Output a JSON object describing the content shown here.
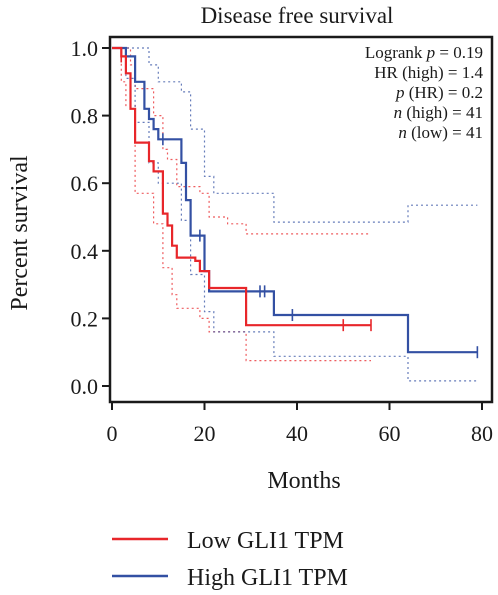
{
  "chart_data": {
    "type": "line",
    "title": "Disease free survival",
    "xlabel": "Months",
    "ylabel": "Percent survival",
    "xlim": [
      0,
      80
    ],
    "ylim": [
      0,
      1.0
    ],
    "x_ticks": [
      0,
      20,
      40,
      60,
      80
    ],
    "y_ticks": [
      0.0,
      0.2,
      0.4,
      0.6,
      0.8,
      1.0
    ],
    "x_tick_labels": [
      "0",
      "20",
      "40",
      "60",
      "80"
    ],
    "y_tick_labels": [
      "0.0",
      "0.2",
      "0.4",
      "0.6",
      "0.8",
      "1.0"
    ],
    "grid": false,
    "legend_position": "bottom",
    "annotations": [
      {
        "label": "Logrank",
        "italic": "p",
        "value": " = 0.19"
      },
      {
        "label": "HR (high) = 1.4",
        "italic": "",
        "value": ""
      },
      {
        "label": "",
        "italic": "p",
        "value": " (HR) = 0.2"
      },
      {
        "label": "",
        "italic": "n",
        "value": " (high) = 41"
      },
      {
        "label": "",
        "italic": "n",
        "value": " (low) = 41"
      }
    ],
    "series": [
      {
        "name": "Low GLI1 TPM",
        "color": "#e8262a",
        "steps": [
          [
            0,
            1.0
          ],
          [
            2,
            0.975
          ],
          [
            3,
            0.925
          ],
          [
            4,
            0.82
          ],
          [
            5,
            0.72
          ],
          [
            8,
            0.665
          ],
          [
            9,
            0.635
          ],
          [
            11,
            0.51
          ],
          [
            12,
            0.475
          ],
          [
            13,
            0.415
          ],
          [
            14,
            0.38
          ],
          [
            18,
            0.37
          ],
          [
            19,
            0.34
          ],
          [
            21,
            0.29
          ],
          [
            29,
            0.18
          ],
          [
            56,
            0.18
          ]
        ],
        "censored": [
          [
            2,
            0.975
          ],
          [
            50,
            0.18
          ],
          [
            56,
            0.18
          ]
        ],
        "ci_upper": [
          [
            0,
            1.0
          ],
          [
            2,
            1.0
          ],
          [
            4,
            0.95
          ],
          [
            5,
            0.88
          ],
          [
            9,
            0.8
          ],
          [
            11,
            0.7
          ],
          [
            12,
            0.67
          ],
          [
            14,
            0.59
          ],
          [
            19,
            0.57
          ],
          [
            21,
            0.5
          ],
          [
            25,
            0.48
          ],
          [
            29,
            0.45
          ],
          [
            56,
            0.45
          ]
        ],
        "ci_lower": [
          [
            0,
            1.0
          ],
          [
            2,
            0.9
          ],
          [
            3,
            0.83
          ],
          [
            5,
            0.57
          ],
          [
            9,
            0.48
          ],
          [
            11,
            0.35
          ],
          [
            13,
            0.27
          ],
          [
            14,
            0.23
          ],
          [
            19,
            0.2
          ],
          [
            21,
            0.16
          ],
          [
            29,
            0.075
          ],
          [
            56,
            0.075
          ]
        ]
      },
      {
        "name": "High GLI1 TPM",
        "color": "#3350a3",
        "steps": [
          [
            0,
            1.0
          ],
          [
            3,
            0.975
          ],
          [
            5,
            0.9
          ],
          [
            7,
            0.82
          ],
          [
            8,
            0.79
          ],
          [
            9,
            0.76
          ],
          [
            10,
            0.73
          ],
          [
            15,
            0.66
          ],
          [
            16,
            0.55
          ],
          [
            17,
            0.445
          ],
          [
            20,
            0.34
          ],
          [
            21,
            0.28
          ],
          [
            35,
            0.21
          ],
          [
            64,
            0.1
          ],
          [
            79,
            0.1
          ]
        ],
        "censored": [
          [
            11,
            0.73
          ],
          [
            19,
            0.445
          ],
          [
            32,
            0.28
          ],
          [
            33,
            0.28
          ],
          [
            39,
            0.21
          ],
          [
            79,
            0.1
          ]
        ],
        "ci_upper": [
          [
            0,
            1.0
          ],
          [
            5,
            1.0
          ],
          [
            8,
            0.95
          ],
          [
            10,
            0.9
          ],
          [
            15,
            0.87
          ],
          [
            17,
            0.76
          ],
          [
            20,
            0.62
          ],
          [
            22,
            0.57
          ],
          [
            35,
            0.485
          ],
          [
            64,
            0.485
          ],
          [
            64,
            0.535
          ],
          [
            79,
            0.535
          ]
        ],
        "ci_lower": [
          [
            0,
            1.0
          ],
          [
            3,
            0.91
          ],
          [
            5,
            0.78
          ],
          [
            8,
            0.66
          ],
          [
            10,
            0.6
          ],
          [
            15,
            0.49
          ],
          [
            17,
            0.33
          ],
          [
            20,
            0.22
          ],
          [
            22,
            0.16
          ],
          [
            35,
            0.088
          ],
          [
            64,
            0.088
          ],
          [
            64,
            0.015
          ],
          [
            79,
            0.015
          ]
        ]
      }
    ]
  }
}
